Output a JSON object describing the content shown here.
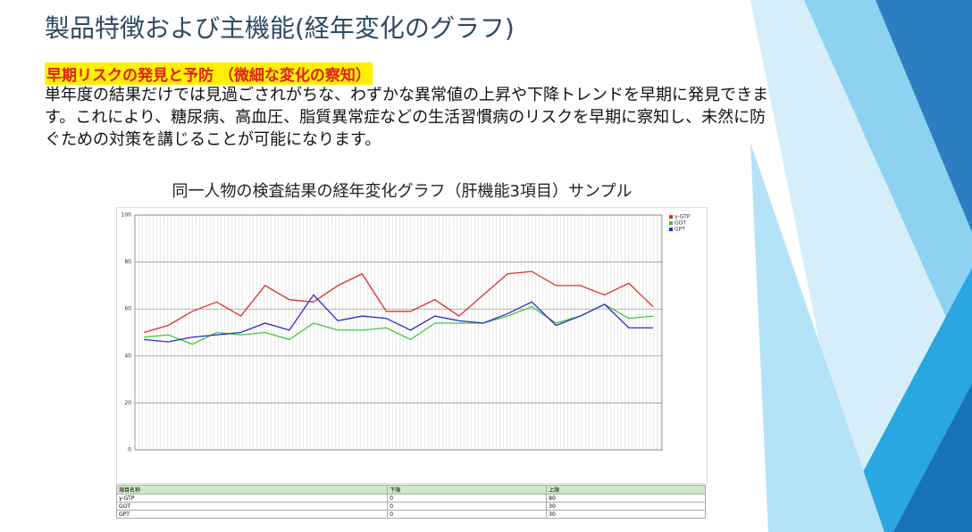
{
  "header": {
    "title": "製品特徴および主機能(経年変化のグラフ)"
  },
  "section": {
    "heading": "早期リスクの発見と予防 （微細な変化の察知）",
    "body": " 単年度の結果だけでは見過ごされがちな、わずかな異常値の上昇や下降トレンドを早期に発見できます。これにより、糖尿病、高血圧、脂質異常症などの生活習慣病のリスクを早期に察知し、未然に防ぐための対策を講じることが可能になります。"
  },
  "chart_data": {
    "type": "line",
    "title": "同一人物の検査結果の経年変化グラフ（肝機能3項目）サンプル",
    "categories": [
      null,
      null,
      null,
      null,
      null,
      null,
      null,
      null,
      null,
      null,
      null,
      null,
      null,
      null,
      null,
      null,
      null,
      null,
      null,
      null,
      null,
      null
    ],
    "series": [
      {
        "name": "γ-GTP",
        "color": "#d9302a",
        "values": [
          50,
          53,
          59,
          63,
          57,
          70,
          64,
          63,
          70,
          75,
          59,
          59,
          64,
          57,
          66,
          75,
          76,
          70,
          70,
          66,
          71,
          61
        ]
      },
      {
        "name": "GOT",
        "color": "#3cc83c",
        "values": [
          48,
          49,
          45,
          50,
          49,
          50,
          47,
          54,
          51,
          51,
          52,
          47,
          54,
          54,
          54,
          57,
          61,
          54,
          57,
          62,
          56,
          57
        ]
      },
      {
        "name": "GPT",
        "color": "#2a2ad0",
        "values": [
          47,
          46,
          48,
          49,
          50,
          54,
          51,
          66,
          55,
          57,
          56,
          51,
          57,
          55,
          54,
          58,
          63,
          53,
          57,
          62,
          52,
          52
        ]
      }
    ],
    "ylim": [
      0,
      100
    ],
    "yticks": [
      0,
      20,
      40,
      60,
      80,
      100
    ],
    "grid": true,
    "legend": "top-right"
  },
  "table": {
    "header": [
      "項目名称",
      "下限",
      "上限"
    ],
    "rows": [
      [
        "γ-GTP",
        "0",
        "80"
      ],
      [
        "GOT",
        "0",
        "30"
      ],
      [
        "GPT",
        "0",
        "30"
      ]
    ]
  }
}
